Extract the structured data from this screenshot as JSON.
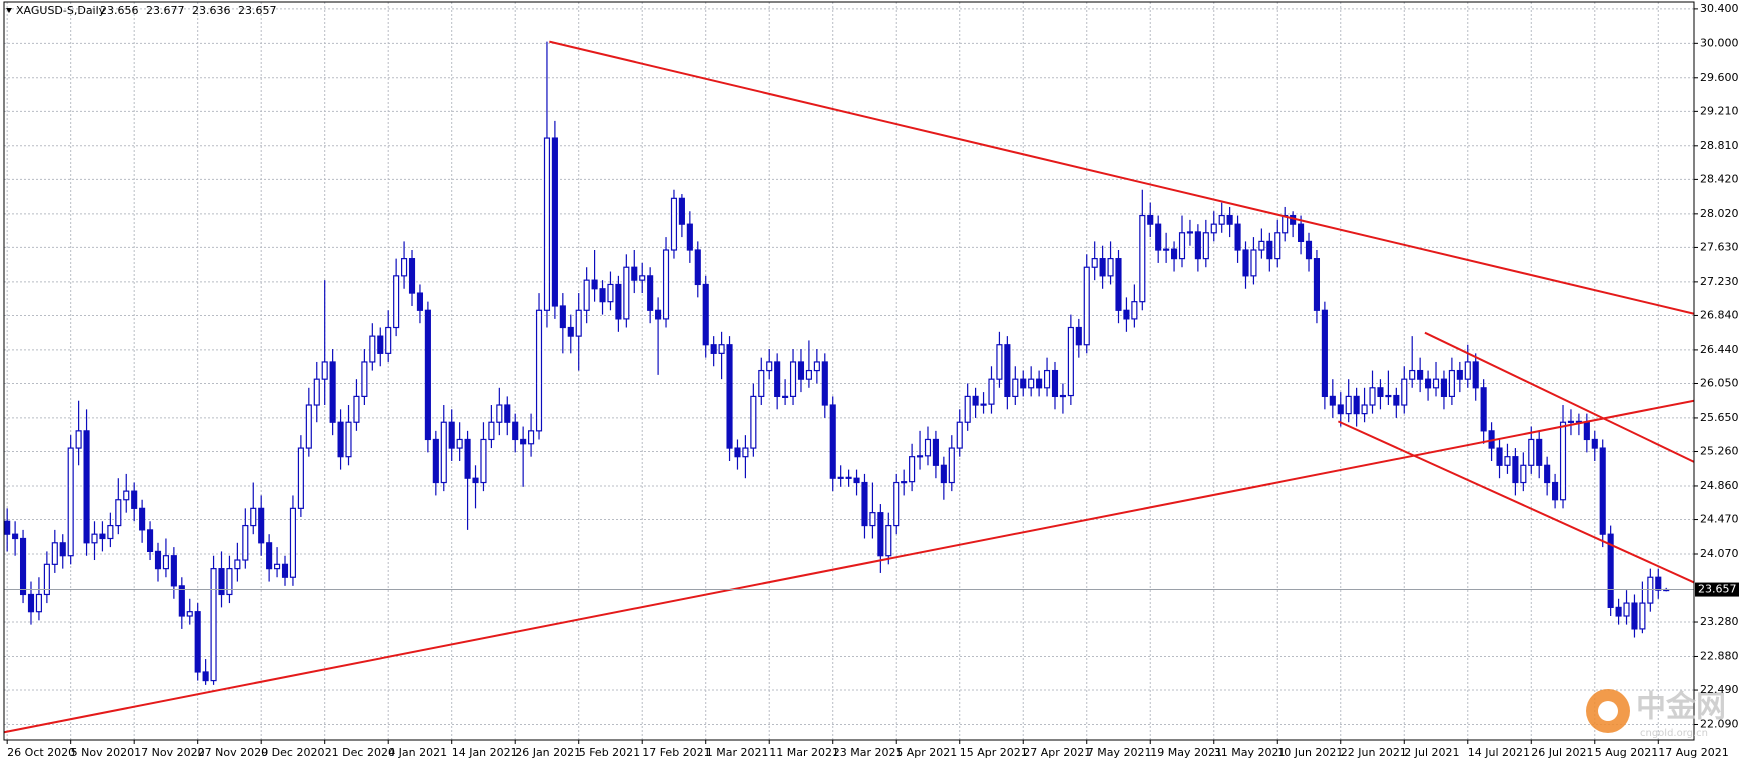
{
  "chart_data": {
    "type": "candlestick",
    "title": "XAGUSD-S,Daily",
    "color": "#0c0cbd",
    "grid": true,
    "xlim": [
      -0.4,
      212.5
    ],
    "ylim": [
      21.91,
      30.48
    ],
    "yticks": [
      {
        "value": 30.4,
        "label": "30.400"
      },
      {
        "value": 30.0,
        "label": "30.000"
      },
      {
        "value": 29.6,
        "label": "29.600"
      },
      {
        "value": 29.21,
        "label": "29.210"
      },
      {
        "value": 28.81,
        "label": "28.810"
      },
      {
        "value": 28.42,
        "label": "28.420"
      },
      {
        "value": 28.02,
        "label": "28.020"
      },
      {
        "value": 27.63,
        "label": "27.630"
      },
      {
        "value": 27.23,
        "label": "27.230"
      },
      {
        "value": 26.84,
        "label": "26.840"
      },
      {
        "value": 26.44,
        "label": "26.440"
      },
      {
        "value": 26.05,
        "label": "26.050"
      },
      {
        "value": 25.65,
        "label": "25.650"
      },
      {
        "value": 25.26,
        "label": "25.260"
      },
      {
        "value": 24.86,
        "label": "24.860"
      },
      {
        "value": 24.47,
        "label": "24.470"
      },
      {
        "value": 24.07,
        "label": "24.070"
      },
      {
        "value": 23.28,
        "label": "23.280"
      },
      {
        "value": 22.88,
        "label": "22.880"
      },
      {
        "value": 22.49,
        "label": "22.490"
      },
      {
        "value": 22.09,
        "label": "22.090"
      }
    ],
    "xticks": [
      {
        "value": 0,
        "label": "26 Oct 2020"
      },
      {
        "value": 8,
        "label": "5 Nov 2020"
      },
      {
        "value": 16,
        "label": "17 Nov 2020"
      },
      {
        "value": 24,
        "label": "27 Nov 2020"
      },
      {
        "value": 32,
        "label": "9 Dec 2020"
      },
      {
        "value": 40,
        "label": "21 Dec 2020"
      },
      {
        "value": 48,
        "label": "4 Jan 2021"
      },
      {
        "value": 56,
        "label": "14 Jan 2021"
      },
      {
        "value": 64,
        "label": "26 Jan 2021"
      },
      {
        "value": 72,
        "label": "5 Feb 2021"
      },
      {
        "value": 80,
        "label": "17 Feb 2021"
      },
      {
        "value": 88,
        "label": "1 Mar 2021"
      },
      {
        "value": 96,
        "label": "11 Mar 2021"
      },
      {
        "value": 104,
        "label": "23 Mar 2021"
      },
      {
        "value": 112,
        "label": "5 Apr 2021"
      },
      {
        "value": 120,
        "label": "15 Apr 2021"
      },
      {
        "value": 128,
        "label": "27 Apr 2021"
      },
      {
        "value": 136,
        "label": "7 May 2021"
      },
      {
        "value": 144,
        "label": "19 May 2021"
      },
      {
        "value": 152,
        "label": "31 May 2021"
      },
      {
        "value": 160,
        "label": "10 Jun 2021"
      },
      {
        "value": 168,
        "label": "22 Jun 2021"
      },
      {
        "value": 176,
        "label": "2 Jul 2021"
      },
      {
        "value": 184,
        "label": "14 Jul 2021"
      },
      {
        "value": 192,
        "label": "26 Jul 2021"
      },
      {
        "value": 200,
        "label": "5 Aug 2021"
      },
      {
        "value": 208,
        "label": "17 Aug 2021"
      }
    ],
    "ohlc": [
      [
        24.45,
        24.6,
        24.1,
        24.3
      ],
      [
        24.3,
        24.45,
        24.05,
        24.25
      ],
      [
        24.25,
        24.35,
        23.5,
        23.6
      ],
      [
        23.6,
        23.75,
        23.25,
        23.4
      ],
      [
        23.4,
        23.8,
        23.3,
        23.6
      ],
      [
        23.6,
        24.1,
        23.5,
        23.95
      ],
      [
        23.95,
        24.35,
        23.85,
        24.2
      ],
      [
        24.2,
        24.3,
        23.9,
        24.05
      ],
      [
        24.05,
        25.45,
        23.95,
        25.3
      ],
      [
        25.3,
        25.85,
        25.1,
        25.5
      ],
      [
        25.5,
        25.75,
        24.05,
        24.2
      ],
      [
        24.2,
        24.45,
        24.0,
        24.3
      ],
      [
        24.3,
        24.45,
        24.1,
        24.25
      ],
      [
        24.25,
        24.55,
        24.15,
        24.4
      ],
      [
        24.4,
        24.95,
        24.3,
        24.7
      ],
      [
        24.7,
        25.0,
        24.55,
        24.8
      ],
      [
        24.8,
        24.9,
        24.45,
        24.6
      ],
      [
        24.6,
        24.7,
        24.2,
        24.35
      ],
      [
        24.35,
        24.45,
        24.0,
        24.1
      ],
      [
        24.1,
        24.2,
        23.75,
        23.9
      ],
      [
        23.9,
        24.25,
        23.8,
        24.05
      ],
      [
        24.05,
        24.15,
        23.55,
        23.7
      ],
      [
        23.7,
        23.8,
        23.2,
        23.35
      ],
      [
        23.35,
        23.55,
        23.25,
        23.4
      ],
      [
        23.4,
        23.5,
        22.6,
        22.7
      ],
      [
        22.7,
        22.85,
        22.55,
        22.6
      ],
      [
        22.6,
        24.05,
        22.55,
        23.9
      ],
      [
        23.9,
        24.1,
        23.45,
        23.6
      ],
      [
        23.6,
        24.05,
        23.5,
        23.9
      ],
      [
        23.9,
        24.2,
        23.75,
        24.0
      ],
      [
        24.0,
        24.6,
        23.9,
        24.4
      ],
      [
        24.4,
        24.9,
        24.3,
        24.6
      ],
      [
        24.6,
        24.75,
        24.05,
        24.2
      ],
      [
        24.2,
        24.3,
        23.75,
        23.9
      ],
      [
        23.9,
        24.15,
        23.8,
        23.95
      ],
      [
        23.95,
        24.05,
        23.7,
        23.8
      ],
      [
        23.8,
        24.75,
        23.7,
        24.6
      ],
      [
        24.6,
        25.45,
        24.5,
        25.3
      ],
      [
        25.3,
        26.0,
        25.2,
        25.8
      ],
      [
        25.8,
        26.3,
        25.6,
        26.1
      ],
      [
        26.1,
        27.25,
        25.8,
        26.3
      ],
      [
        26.3,
        26.45,
        25.45,
        25.6
      ],
      [
        25.6,
        25.75,
        25.05,
        25.2
      ],
      [
        25.2,
        25.8,
        25.1,
        25.6
      ],
      [
        25.6,
        26.1,
        25.5,
        25.9
      ],
      [
        25.9,
        26.45,
        25.8,
        26.3
      ],
      [
        26.3,
        26.75,
        26.2,
        26.6
      ],
      [
        26.6,
        26.7,
        26.25,
        26.4
      ],
      [
        26.4,
        26.9,
        26.3,
        26.7
      ],
      [
        26.7,
        27.5,
        26.6,
        27.3
      ],
      [
        27.3,
        27.7,
        27.15,
        27.5
      ],
      [
        27.5,
        27.6,
        26.95,
        27.1
      ],
      [
        27.1,
        27.2,
        26.75,
        26.9
      ],
      [
        26.9,
        27.0,
        25.25,
        25.4
      ],
      [
        25.4,
        25.5,
        24.75,
        24.9
      ],
      [
        24.9,
        25.8,
        24.8,
        25.6
      ],
      [
        25.6,
        25.75,
        25.15,
        25.3
      ],
      [
        25.3,
        25.6,
        25.15,
        25.4
      ],
      [
        25.4,
        25.5,
        24.35,
        24.95
      ],
      [
        24.95,
        25.1,
        24.6,
        24.9
      ],
      [
        24.9,
        25.6,
        24.8,
        25.4
      ],
      [
        25.4,
        25.8,
        25.3,
        25.6
      ],
      [
        25.6,
        26.0,
        25.45,
        25.8
      ],
      [
        25.8,
        25.9,
        25.45,
        25.6
      ],
      [
        25.6,
        25.7,
        25.25,
        25.4
      ],
      [
        25.4,
        25.55,
        24.85,
        25.35
      ],
      [
        25.35,
        25.7,
        25.2,
        25.5
      ],
      [
        25.5,
        27.1,
        25.4,
        26.9
      ],
      [
        26.9,
        30.02,
        26.7,
        28.9
      ],
      [
        28.9,
        29.1,
        26.8,
        26.95
      ],
      [
        26.95,
        27.1,
        26.4,
        26.7
      ],
      [
        26.7,
        26.85,
        26.4,
        26.6
      ],
      [
        26.6,
        27.1,
        26.2,
        26.9
      ],
      [
        26.9,
        27.4,
        26.75,
        27.25
      ],
      [
        27.25,
        27.6,
        27.0,
        27.15
      ],
      [
        27.15,
        27.25,
        26.85,
        27.0
      ],
      [
        27.0,
        27.35,
        26.9,
        27.2
      ],
      [
        27.2,
        27.3,
        26.65,
        26.8
      ],
      [
        26.8,
        27.55,
        26.7,
        27.4
      ],
      [
        27.4,
        27.6,
        27.1,
        27.25
      ],
      [
        27.25,
        27.45,
        27.1,
        27.3
      ],
      [
        27.3,
        27.4,
        26.75,
        26.9
      ],
      [
        26.9,
        27.05,
        26.15,
        26.8
      ],
      [
        26.8,
        27.75,
        26.7,
        27.6
      ],
      [
        27.6,
        28.3,
        27.5,
        28.2
      ],
      [
        28.2,
        28.25,
        27.75,
        27.9
      ],
      [
        27.9,
        28.05,
        27.45,
        27.6
      ],
      [
        27.6,
        27.7,
        27.05,
        27.2
      ],
      [
        27.2,
        27.3,
        26.35,
        26.5
      ],
      [
        26.5,
        26.6,
        26.25,
        26.4
      ],
      [
        26.4,
        26.65,
        26.1,
        26.5
      ],
      [
        26.5,
        26.6,
        25.15,
        25.3
      ],
      [
        25.3,
        25.4,
        25.05,
        25.2
      ],
      [
        25.2,
        25.45,
        24.95,
        25.3
      ],
      [
        25.3,
        26.05,
        25.2,
        25.9
      ],
      [
        25.9,
        26.35,
        25.8,
        26.2
      ],
      [
        26.2,
        26.45,
        26.1,
        26.3
      ],
      [
        26.3,
        26.4,
        25.75,
        25.9
      ],
      [
        25.9,
        26.1,
        25.8,
        25.9
      ],
      [
        25.9,
        26.45,
        25.8,
        26.3
      ],
      [
        26.3,
        26.45,
        25.95,
        26.1
      ],
      [
        26.1,
        26.55,
        26.0,
        26.2
      ],
      [
        26.2,
        26.45,
        26.05,
        26.3
      ],
      [
        26.3,
        26.4,
        25.65,
        25.8
      ],
      [
        25.8,
        25.9,
        24.8,
        24.95
      ],
      [
        24.95,
        25.1,
        24.85,
        24.96
      ],
      [
        24.96,
        25.05,
        24.85,
        24.95
      ],
      [
        24.95,
        25.05,
        24.75,
        24.9
      ],
      [
        24.9,
        25.0,
        24.25,
        24.4
      ],
      [
        24.4,
        24.9,
        24.25,
        24.55
      ],
      [
        24.55,
        24.65,
        23.85,
        24.05
      ],
      [
        24.05,
        24.55,
        23.95,
        24.4
      ],
      [
        24.4,
        25.0,
        24.3,
        24.9
      ],
      [
        24.9,
        25.05,
        24.75,
        24.91
      ],
      [
        24.91,
        25.35,
        24.8,
        25.2
      ],
      [
        25.2,
        25.5,
        25.05,
        25.21
      ],
      [
        25.21,
        25.55,
        25.1,
        25.4
      ],
      [
        25.4,
        25.5,
        24.95,
        25.1
      ],
      [
        25.1,
        25.2,
        24.7,
        24.9
      ],
      [
        24.9,
        25.45,
        24.8,
        25.3
      ],
      [
        25.3,
        25.75,
        25.2,
        25.6
      ],
      [
        25.6,
        26.05,
        25.5,
        25.9
      ],
      [
        25.9,
        26.0,
        25.65,
        25.8
      ],
      [
        25.8,
        25.95,
        25.7,
        25.81
      ],
      [
        25.81,
        26.25,
        25.7,
        26.1
      ],
      [
        26.1,
        26.65,
        26.0,
        26.5
      ],
      [
        26.5,
        26.6,
        25.75,
        25.9
      ],
      [
        25.9,
        26.25,
        25.8,
        26.1
      ],
      [
        26.1,
        26.2,
        25.9,
        26.0
      ],
      [
        26.0,
        26.25,
        25.9,
        26.1
      ],
      [
        26.1,
        26.2,
        25.9,
        26.0
      ],
      [
        26.0,
        26.35,
        25.9,
        26.2
      ],
      [
        26.2,
        26.3,
        25.75,
        25.9
      ],
      [
        25.9,
        26.05,
        25.7,
        25.91
      ],
      [
        25.91,
        26.85,
        25.8,
        26.7
      ],
      [
        26.7,
        26.8,
        26.35,
        26.5
      ],
      [
        26.5,
        27.55,
        26.4,
        27.4
      ],
      [
        27.4,
        27.7,
        27.25,
        27.5
      ],
      [
        27.5,
        27.65,
        27.15,
        27.3
      ],
      [
        27.3,
        27.7,
        27.2,
        27.5
      ],
      [
        27.5,
        27.6,
        26.75,
        26.9
      ],
      [
        26.9,
        27.05,
        26.65,
        26.8
      ],
      [
        26.8,
        27.2,
        26.7,
        27.0
      ],
      [
        27.0,
        28.3,
        26.9,
        28.0
      ],
      [
        28.0,
        28.15,
        27.75,
        27.9
      ],
      [
        27.9,
        28.0,
        27.45,
        27.6
      ],
      [
        27.6,
        27.8,
        27.45,
        27.61
      ],
      [
        27.61,
        27.7,
        27.35,
        27.5
      ],
      [
        27.5,
        28.0,
        27.4,
        27.8
      ],
      [
        27.8,
        27.95,
        27.65,
        27.81
      ],
      [
        27.81,
        27.9,
        27.35,
        27.5
      ],
      [
        27.5,
        27.95,
        27.4,
        27.8
      ],
      [
        27.8,
        28.05,
        27.7,
        27.9
      ],
      [
        27.9,
        28.15,
        27.8,
        28.0
      ],
      [
        28.0,
        28.1,
        27.75,
        27.9
      ],
      [
        27.9,
        28.0,
        27.45,
        27.6
      ],
      [
        27.6,
        27.7,
        27.15,
        27.3
      ],
      [
        27.3,
        27.75,
        27.2,
        27.6
      ],
      [
        27.6,
        27.85,
        27.5,
        27.7
      ],
      [
        27.7,
        27.8,
        27.35,
        27.5
      ],
      [
        27.5,
        27.95,
        27.4,
        27.8
      ],
      [
        27.8,
        28.1,
        27.7,
        28.0
      ],
      [
        28.0,
        28.05,
        27.75,
        27.9
      ],
      [
        27.9,
        28.0,
        27.55,
        27.7
      ],
      [
        27.7,
        27.8,
        27.35,
        27.5
      ],
      [
        27.5,
        27.6,
        26.75,
        26.9
      ],
      [
        26.9,
        27.0,
        25.75,
        25.9
      ],
      [
        25.9,
        26.1,
        25.65,
        25.8
      ],
      [
        25.8,
        25.95,
        25.55,
        25.7
      ],
      [
        25.7,
        26.1,
        25.6,
        25.9
      ],
      [
        25.9,
        26.0,
        25.55,
        25.7
      ],
      [
        25.7,
        26.0,
        25.6,
        25.8
      ],
      [
        25.8,
        26.2,
        25.7,
        26.0
      ],
      [
        26.0,
        26.1,
        25.75,
        25.9
      ],
      [
        25.9,
        26.2,
        25.8,
        25.91
      ],
      [
        25.91,
        26.0,
        25.65,
        25.8
      ],
      [
        25.8,
        26.25,
        25.7,
        26.1
      ],
      [
        26.1,
        26.6,
        26.0,
        26.2
      ],
      [
        26.2,
        26.35,
        25.95,
        26.1
      ],
      [
        26.1,
        26.2,
        25.85,
        26.0
      ],
      [
        26.0,
        26.3,
        25.9,
        26.1
      ],
      [
        26.1,
        26.2,
        25.75,
        25.9
      ],
      [
        25.9,
        26.35,
        25.8,
        26.2
      ],
      [
        26.2,
        26.3,
        25.95,
        26.1
      ],
      [
        26.1,
        26.5,
        26.0,
        26.3
      ],
      [
        26.3,
        26.4,
        25.85,
        26.0
      ],
      [
        26.0,
        26.1,
        25.35,
        25.5
      ],
      [
        25.5,
        25.6,
        25.15,
        25.3
      ],
      [
        25.3,
        25.4,
        24.95,
        25.1
      ],
      [
        25.1,
        25.35,
        25.0,
        25.2
      ],
      [
        25.2,
        25.3,
        24.75,
        24.9
      ],
      [
        24.9,
        25.25,
        24.8,
        25.1
      ],
      [
        25.1,
        25.55,
        25.0,
        25.4
      ],
      [
        25.4,
        25.5,
        24.95,
        25.1
      ],
      [
        25.1,
        25.2,
        24.75,
        24.9
      ],
      [
        24.9,
        25.0,
        24.6,
        24.7
      ],
      [
        24.7,
        25.8,
        24.6,
        25.6
      ],
      [
        25.6,
        25.75,
        25.45,
        25.61
      ],
      [
        25.61,
        25.7,
        25.45,
        25.6
      ],
      [
        25.6,
        25.7,
        25.25,
        25.4
      ],
      [
        25.4,
        25.5,
        25.15,
        25.3
      ],
      [
        25.3,
        25.4,
        24.15,
        24.3
      ],
      [
        24.3,
        24.4,
        23.35,
        23.45
      ],
      [
        23.45,
        23.55,
        23.25,
        23.35
      ],
      [
        23.35,
        23.65,
        23.25,
        23.5
      ],
      [
        23.5,
        23.6,
        23.1,
        23.2
      ],
      [
        23.2,
        23.75,
        23.15,
        23.5
      ],
      [
        23.5,
        23.9,
        23.4,
        23.8
      ],
      [
        23.8,
        23.9,
        23.55,
        23.65
      ],
      [
        23.656,
        23.677,
        23.636,
        23.657
      ]
    ],
    "trendlines": [
      {
        "color": "#e41a1a",
        "points": [
          [
            68.3,
            30.02
          ],
          [
            212.5,
            26.86
          ]
        ]
      },
      {
        "color": "#e41a1a",
        "points": [
          [
            -0.4,
            22.0
          ],
          [
            212.5,
            25.85
          ]
        ]
      },
      {
        "color": "#e41a1a",
        "points": [
          [
            178.6,
            26.64
          ],
          [
            212.5,
            25.14
          ]
        ]
      },
      {
        "color": "#e41a1a",
        "points": [
          [
            167.7,
            25.61
          ],
          [
            212.5,
            23.74
          ]
        ]
      }
    ]
  },
  "watermark": {
    "text": "中金网",
    "url": "cngold.org.cn"
  }
}
